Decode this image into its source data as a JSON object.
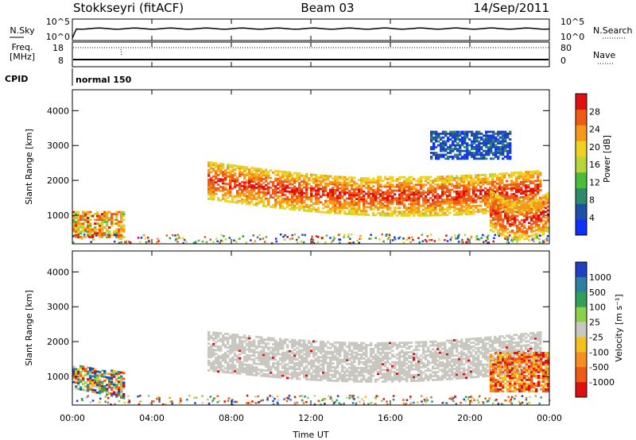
{
  "header": {
    "station": "Stokkseyri (fitACF)",
    "beam": "Beam 03",
    "date": "14/Sep/2011"
  },
  "panels": {
    "nsky_label": "N.Sky",
    "nsky_ticks": [
      "10^5",
      "10^0"
    ],
    "nsearch_label": "N.Search",
    "nsearch_ticks": [
      "10^5",
      "10^0"
    ],
    "freq_label_top": "Freq.",
    "freq_label_bottom": "[MHz]",
    "freq_ticks": [
      "18",
      "8"
    ],
    "nave_label": "Nave",
    "nave_ticks": [
      "80",
      "0"
    ],
    "cpid_label": "CPID",
    "cpid_value": "normal 150"
  },
  "chart_data": [
    {
      "type": "heatmap",
      "name": "power-panel",
      "ylabel": "Slant Range [km]",
      "xlabel": "",
      "ylim": [
        180,
        4600
      ],
      "xlim": [
        0,
        24
      ],
      "y_ticks": [
        "1000",
        "2000",
        "3000",
        "4000"
      ],
      "colorbar_label": "Power [dB]",
      "colorbar_ticks": [
        "4",
        "8",
        "12",
        "16",
        "20",
        "24",
        "28"
      ],
      "colorbar_colors": [
        "#1030ff",
        "#1f4fa8",
        "#2e8a6a",
        "#4cbc3c",
        "#b8d63a",
        "#f0d020",
        "#f59a18",
        "#ef5a14",
        "#e01010"
      ],
      "bands": [
        {
          "t_start": 0.0,
          "t_end": 2.6,
          "r_low": 350,
          "r_high": 1100,
          "level": "mid-high"
        },
        {
          "t_start": 6.8,
          "t_end": 23.6,
          "r_low": 1150,
          "r_high": 2300,
          "level": "high"
        },
        {
          "t_start": 18.0,
          "t_end": 22.0,
          "r_low": 2600,
          "r_high": 3400,
          "level": "low"
        },
        {
          "t_start": 21.0,
          "t_end": 24.0,
          "r_low": 550,
          "r_high": 1700,
          "level": "high"
        }
      ]
    },
    {
      "type": "heatmap",
      "name": "velocity-panel",
      "ylabel": "Slant Range [km]",
      "xlabel": "Time UT",
      "ylim": [
        180,
        4600
      ],
      "xlim": [
        0,
        24
      ],
      "y_ticks": [
        "1000",
        "2000",
        "3000",
        "4000"
      ],
      "x_ticks": [
        "00:00",
        "04:00",
        "08:00",
        "12:00",
        "16:00",
        "20:00",
        "00:00"
      ],
      "colorbar_label": "Velocity [m s⁻¹]",
      "colorbar_ticks": [
        "1000",
        "500",
        "100",
        "25",
        "-25",
        "-100",
        "-500",
        "-1000"
      ],
      "colorbar_colors": [
        "#2040c0",
        "#2e7fa0",
        "#2f9f5a",
        "#8ccf48",
        "#c8c8c0",
        "#f2c020",
        "#f59020",
        "#ef5a14",
        "#e01010"
      ],
      "bands": [
        {
          "t_start": 6.8,
          "t_end": 23.6,
          "r_low": 1150,
          "r_high": 2300,
          "level": "ground-scatter"
        },
        {
          "t_start": 0.0,
          "t_end": 2.6,
          "r_low": 350,
          "r_high": 1100,
          "level": "mixed"
        },
        {
          "t_start": 21.0,
          "t_end": 24.0,
          "r_low": 550,
          "r_high": 1700,
          "level": "negative"
        }
      ]
    }
  ]
}
